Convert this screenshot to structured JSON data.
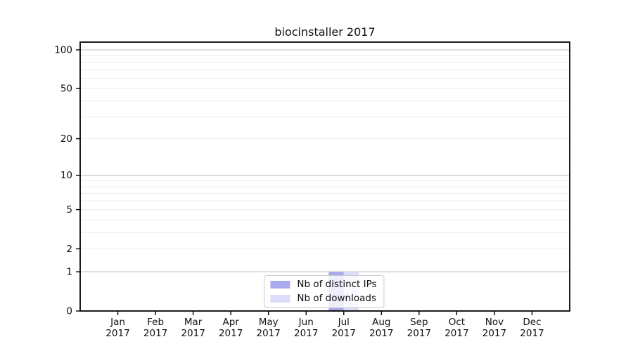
{
  "chart_data": {
    "type": "bar",
    "title": "biocinstaller 2017",
    "categories": [
      "Jan",
      "Feb",
      "Mar",
      "Apr",
      "May",
      "Jun",
      "Jul",
      "Aug",
      "Sep",
      "Oct",
      "Nov",
      "Dec"
    ],
    "x_year_label": "2017",
    "series": [
      {
        "name": "Nb of distinct IPs",
        "color": "#a8a8ec",
        "values": [
          0,
          0,
          0,
          0,
          0,
          0,
          1,
          0,
          0,
          0,
          0,
          0
        ]
      },
      {
        "name": "Nb of downloads",
        "color": "#dcdcf8",
        "values": [
          0,
          0,
          0,
          0,
          0,
          0,
          1,
          0,
          0,
          0,
          0,
          0
        ]
      }
    ],
    "y_scale": "log1p",
    "ylim": [
      0,
      100
    ],
    "y_ticks": [
      0,
      1,
      2,
      5,
      10,
      20,
      50,
      100
    ],
    "y_minor_grid": [
      2,
      3,
      4,
      5,
      6,
      7,
      8,
      9,
      20,
      30,
      40,
      50,
      60,
      70,
      80,
      90
    ],
    "y_major_grid": [
      1,
      10,
      100
    ],
    "legend_position": "lower center",
    "grid_on": true,
    "colors": {
      "grid_major": "#c9c9c9",
      "grid_minor": "#ececec",
      "axis": "#000000",
      "text": "#111111",
      "background": "#ffffff"
    }
  }
}
